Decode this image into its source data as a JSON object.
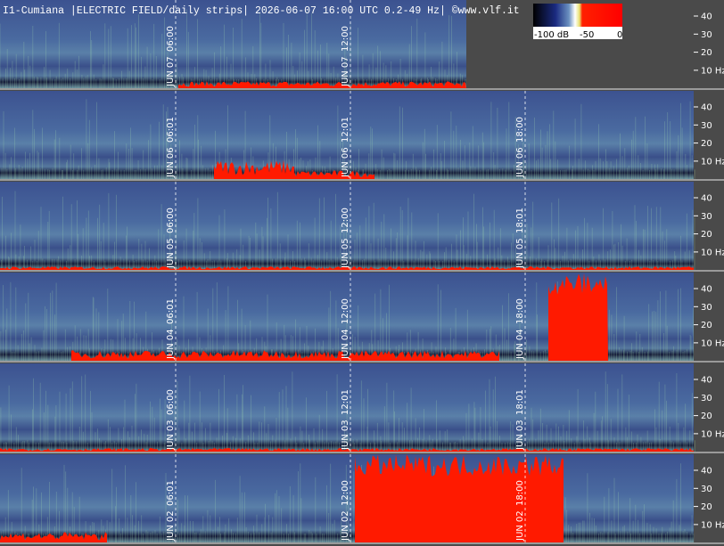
{
  "header": {
    "title": "I1-Cumiana |ELECTRIC FIELD/daily strips| 2026-06-07 16:00 UTC 0.2-49 Hz| ©www.vlf.it"
  },
  "colorbar": {
    "labels": [
      "-100 dB",
      "-50",
      "0"
    ]
  },
  "strips": [
    {
      "ticks": [
        "40",
        "30",
        "20",
        "10 Hz"
      ],
      "markers": [
        {
          "time": "06:00",
          "date": "JUN 07"
        },
        {
          "time": "12:00",
          "date": "JUN 07"
        }
      ]
    },
    {
      "ticks": [
        "40",
        "30",
        "20",
        "10 Hz"
      ],
      "markers": [
        {
          "time": "06:01",
          "date": "JUN 06"
        },
        {
          "time": "12:01",
          "date": "JUN 06"
        },
        {
          "time": "18:00",
          "date": "JUN 06"
        }
      ]
    },
    {
      "ticks": [
        "40",
        "30",
        "20",
        "10 Hz"
      ],
      "markers": [
        {
          "time": "06:00",
          "date": "JUN 05"
        },
        {
          "time": "12:00",
          "date": "JUN 05"
        },
        {
          "time": "18:01",
          "date": "JUN 05"
        }
      ]
    },
    {
      "ticks": [
        "40",
        "30",
        "20",
        "10 Hz"
      ],
      "markers": [
        {
          "time": "06:01",
          "date": "JUN 04"
        },
        {
          "time": "12:00",
          "date": "JUN 04"
        },
        {
          "time": "18:00",
          "date": "JUN 04"
        }
      ]
    },
    {
      "ticks": [
        "40",
        "30",
        "20",
        "10 Hz"
      ],
      "markers": [
        {
          "time": "06:00",
          "date": "JUN 03"
        },
        {
          "time": "12:01",
          "date": "JUN 03"
        },
        {
          "time": "18:01",
          "date": "JUN 03"
        }
      ]
    },
    {
      "ticks": [
        "40",
        "30",
        "20",
        "10 Hz"
      ],
      "markers": [
        {
          "time": "06:01",
          "date": "JUN 02"
        },
        {
          "time": "12:00",
          "date": "JUN 02"
        },
        {
          "time": "18:00",
          "date": "JUN 02"
        }
      ]
    }
  ]
}
